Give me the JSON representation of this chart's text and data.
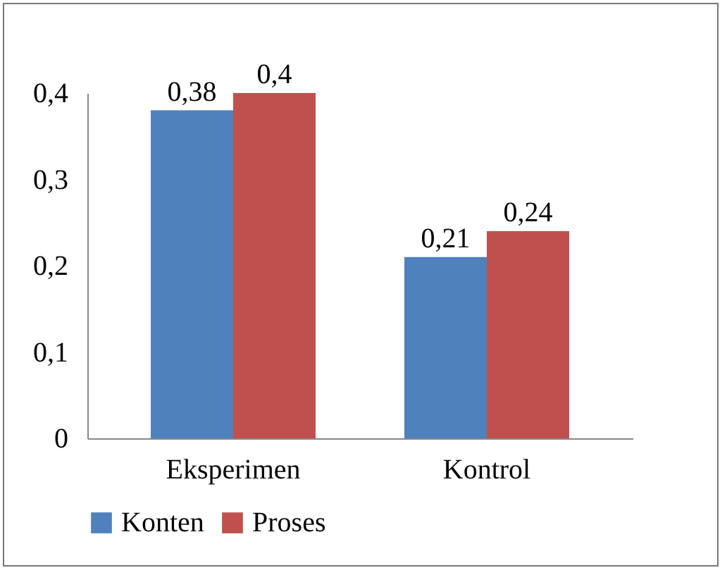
{
  "chart_data": {
    "type": "bar",
    "categories": [
      "Eksperimen",
      "Kontrol"
    ],
    "series": [
      {
        "name": "Konten",
        "color": "#4f81bd",
        "values": [
          0.38,
          0.21
        ],
        "value_labels": [
          "0,38",
          "0,21"
        ]
      },
      {
        "name": "Proses",
        "color": "#c0504d",
        "values": [
          0.4,
          0.24
        ],
        "value_labels": [
          "0,4",
          "0,24"
        ]
      }
    ],
    "ylim": [
      0,
      0.4
    ],
    "yticks": [
      0,
      {
        "value": 0.1,
        "label": "0,1"
      },
      {
        "value": 0.2,
        "label": "0,2"
      },
      {
        "value": 0.3,
        "label": "0,3"
      },
      {
        "value": 0.4,
        "label": "0,4"
      }
    ],
    "grid": false,
    "legend": "bottom"
  }
}
